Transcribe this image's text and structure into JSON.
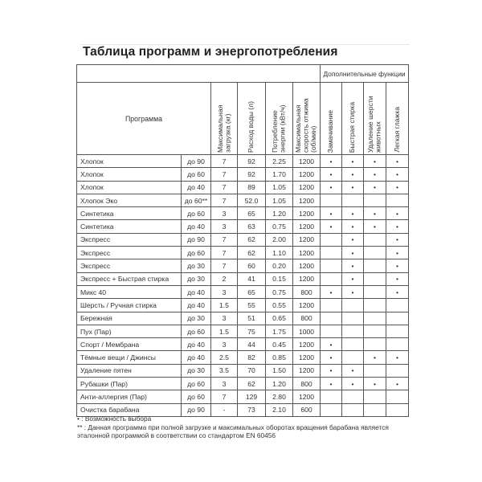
{
  "title": "Таблица программ и энергопотребления",
  "header": {
    "extra_functions": "Дополнительные функции",
    "program": "Программа",
    "max_load": "Максимальная загрузка (кг)",
    "water": "Расход воды (л)",
    "energy": "Потребление энергии (кВт/ч)",
    "max_speed": "Максимальная скорость отжима (об/мин)",
    "soak": "Замачивание",
    "quick_wash": "Быстрая стирка",
    "pet_hair": "Удаление шерсти животных",
    "easy_iron": "Легкая глажка"
  },
  "rows": [
    {
      "name": "Хлопок",
      "temp": "до 90",
      "load": "7",
      "water": "92",
      "energy": "2.25",
      "speed": "1200",
      "f": [
        "•",
        "•",
        "•",
        "•"
      ]
    },
    {
      "name": "Хлопок",
      "temp": "до 60",
      "load": "7",
      "water": "92",
      "energy": "1.70",
      "speed": "1200",
      "f": [
        "•",
        "•",
        "•",
        "•"
      ]
    },
    {
      "name": "Хлопок",
      "temp": "до 40",
      "load": "7",
      "water": "89",
      "energy": "1.05",
      "speed": "1200",
      "f": [
        "•",
        "•",
        "•",
        "•"
      ]
    },
    {
      "name": "Хлопок Эко",
      "temp": "до 60**",
      "load": "7",
      "water": "52.0",
      "energy": "1.05",
      "speed": "1200",
      "f": [
        "",
        "",
        "",
        ""
      ]
    },
    {
      "name": "Синтетика",
      "temp": "до 60",
      "load": "3",
      "water": "65",
      "energy": "1.20",
      "speed": "1200",
      "f": [
        "•",
        "•",
        "•",
        "•"
      ]
    },
    {
      "name": "Синтетика",
      "temp": "до 40",
      "load": "3",
      "water": "63",
      "energy": "0.75",
      "speed": "1200",
      "f": [
        "•",
        "•",
        "•",
        "•"
      ]
    },
    {
      "name": "Экспресс",
      "temp": "до 90",
      "load": "7",
      "water": "62",
      "energy": "2.00",
      "speed": "1200",
      "f": [
        "",
        "•",
        "",
        "•"
      ]
    },
    {
      "name": "Экспресс",
      "temp": "до 60",
      "load": "7",
      "water": "62",
      "energy": "1.10",
      "speed": "1200",
      "f": [
        "",
        "•",
        "",
        "•"
      ]
    },
    {
      "name": "Экспресс",
      "temp": "до 30",
      "load": "7",
      "water": "60",
      "energy": "0.20",
      "speed": "1200",
      "f": [
        "",
        "•",
        "",
        "•"
      ]
    },
    {
      "name": "Экспресс + Быстрая стирка",
      "temp": "до 30",
      "load": "2",
      "water": "41",
      "energy": "0.15",
      "speed": "1200",
      "f": [
        "",
        "•",
        "",
        "•"
      ]
    },
    {
      "name": "Микс 40",
      "temp": "до 40",
      "load": "3",
      "water": "65",
      "energy": "0.75",
      "speed": "800",
      "f": [
        "•",
        "•",
        "",
        "•"
      ]
    },
    {
      "name": "Шерсть / Ручная стирка",
      "temp": "до 40",
      "load": "1.5",
      "water": "55",
      "energy": "0.55",
      "speed": "1200",
      "f": [
        "",
        "",
        "",
        ""
      ]
    },
    {
      "name": "Бережная",
      "temp": "до 30",
      "load": "3",
      "water": "51",
      "energy": "0.65",
      "speed": "800",
      "f": [
        "",
        "",
        "",
        ""
      ]
    },
    {
      "name": "Пух (Пар)",
      "temp": "до 60",
      "load": "1.5",
      "water": "75",
      "energy": "1.75",
      "speed": "1000",
      "f": [
        "",
        "",
        "",
        ""
      ]
    },
    {
      "name": "Спорт / Мембрана",
      "temp": "до 40",
      "load": "3",
      "water": "44",
      "energy": "0.45",
      "speed": "1200",
      "f": [
        "•",
        "",
        "",
        ""
      ]
    },
    {
      "name": "Тёмные вещи / Джинсы",
      "temp": "до 40",
      "load": "2.5",
      "water": "82",
      "energy": "0.85",
      "speed": "1200",
      "f": [
        "•",
        "",
        "•",
        "•"
      ]
    },
    {
      "name": "Удаление пятен",
      "temp": "до 30",
      "load": "3.5",
      "water": "70",
      "energy": "1.50",
      "speed": "1200",
      "f": [
        "•",
        "•",
        "",
        ""
      ]
    },
    {
      "name": "Рубашки (Пар)",
      "temp": "до 60",
      "load": "3",
      "water": "62",
      "energy": "1.20",
      "speed": "800",
      "f": [
        "•",
        "•",
        "•",
        "•"
      ]
    },
    {
      "name": "Анти-аллергия (Пар)",
      "temp": "до 60",
      "load": "7",
      "water": "129",
      "energy": "2.80",
      "speed": "1200",
      "f": [
        "",
        "",
        "",
        ""
      ]
    },
    {
      "name": "Очистка барабана",
      "temp": "до 90",
      "load": "-",
      "water": "73",
      "energy": "2.10",
      "speed": "600",
      "f": [
        "",
        "",
        "",
        ""
      ]
    }
  ],
  "notes": {
    "bullet": "• : Возможность выбора",
    "star": "** : Данная программа при полной загрузке и максимальных оборотах вращения барабана является эталонной программой в соответствии со стандартом  EN 60456"
  }
}
